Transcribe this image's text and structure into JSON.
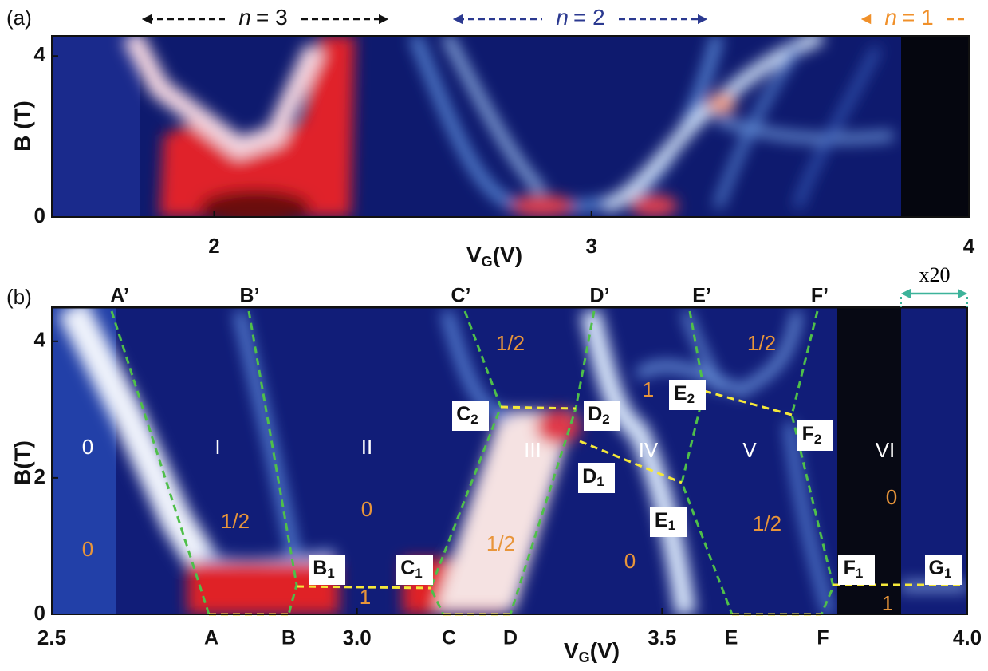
{
  "panel_a": {
    "label": "(a)",
    "ylabel": "B (T)",
    "xlabel": {
      "main": "V",
      "sub": "G",
      "unit": "(V)"
    },
    "xlim": [
      1.57,
      4.0
    ],
    "ylim": [
      0,
      4.5
    ],
    "xticks": [
      2,
      3,
      4
    ],
    "yticks": [
      0,
      4
    ],
    "bands": [
      {
        "var": "n",
        "text": "= 3",
        "color": "#111111"
      },
      {
        "var": "n",
        "text": "= 2",
        "color": "#2b3990"
      },
      {
        "var": "n",
        "text": "= 1",
        "color": "#f0902a"
      }
    ]
  },
  "panel_b": {
    "label": "(b)",
    "ylabel": "B(T)",
    "xlabel": {
      "main": "V",
      "sub": "G",
      "unit": "(V)"
    },
    "xlim": [
      2.5,
      4.0
    ],
    "ylim": [
      0,
      4.5
    ],
    "xticks": [
      {
        "value": 2.5,
        "label": "2.5"
      },
      {
        "value": 3.0,
        "label": "3.0"
      },
      {
        "value": 3.5,
        "label": "3.5"
      },
      {
        "value": 4.0,
        "label": "4.0"
      }
    ],
    "yticks": [
      0,
      2,
      4
    ],
    "scale_note": "x20",
    "top_points": [
      "A’",
      "B’",
      "C’",
      "D’",
      "E’",
      "F’"
    ],
    "bottom_points": [
      "A",
      "B",
      "C",
      "D",
      "E",
      "F"
    ],
    "boxed_points": [
      {
        "main": "B",
        "sub": "1"
      },
      {
        "main": "C",
        "sub": "1"
      },
      {
        "main": "C",
        "sub": "2"
      },
      {
        "main": "D",
        "sub": "2"
      },
      {
        "main": "D",
        "sub": "1"
      },
      {
        "main": "E",
        "sub": "1"
      },
      {
        "main": "E",
        "sub": "2"
      },
      {
        "main": "F",
        "sub": "2"
      },
      {
        "main": "F",
        "sub": "1"
      },
      {
        "main": "G",
        "sub": "1"
      }
    ],
    "regions": [
      "0",
      "I",
      "II",
      "III",
      "IV",
      "V",
      "VI"
    ],
    "fillings": [
      "0",
      "1/2",
      "0",
      "1/2",
      "1",
      "1/2",
      "1",
      "0",
      "1/2",
      "1/2",
      "0",
      "1"
    ]
  }
}
